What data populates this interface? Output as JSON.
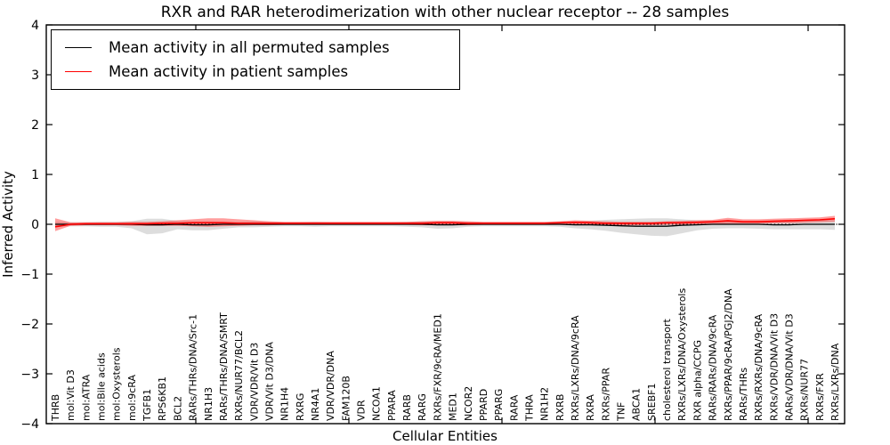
{
  "chart_data": {
    "type": "line",
    "title": "RXR and RAR heterodimerization with other nuclear receptor -- 28 samples",
    "xlabel": "Cellular Entities",
    "ylabel": "Inferred Activity",
    "ylim": [
      -4,
      4
    ],
    "yticks": [
      4,
      3,
      2,
      1,
      0,
      -1,
      -2,
      -3,
      -4
    ],
    "grid": false,
    "legend_position": "upper left",
    "zero_line": {
      "value": 0,
      "style": "dotted",
      "color": "#000000"
    },
    "categories": [
      "THRB",
      "mol:Vit D3",
      "mol:ATRA",
      "mol:Bile acids",
      "mol:Oxysterols",
      "mol:9cRA",
      "TGFB1",
      "RPS6KB1",
      "BCL2",
      "RARs/THRs/DNA/Src-1",
      "NR1H3",
      "RARs/THRs/DNA/SMRT",
      "RXRs/NUR77/BCL2",
      "VDR/VDR/Vit D3",
      "VDR/Vit D3/DNA",
      "NR1H4",
      "RXRG",
      "NR4A1",
      "VDR/VDR/DNA",
      "FAM120B",
      "VDR",
      "NCOA1",
      "PPARA",
      "RARB",
      "RARG",
      "RXRs/FXR/9cRA/MED1",
      "MED1",
      "NCOR2",
      "PPARD",
      "PPARG",
      "RARA",
      "THRA",
      "NR1H2",
      "RXRB",
      "RXRs/LXRs/DNA/9cRA",
      "RXRA",
      "RXRs/PPAR",
      "TNF",
      "ABCA1",
      "SREBF1",
      "cholesterol transport",
      "RXRs/LXRs/DNA/Oxysterols",
      "RXR alpha/CCPG",
      "RARs/RARs/DNA/9cRA",
      "RXRs/PPAR/9cRA/PGJ2/DNA",
      "RARs/THRs",
      "RXRs/RXRs/DNA/9cRA",
      "RXRs/VDR/DNA/Vit D3",
      "RARs/VDR/DNA/Vit D3",
      "RXRs/NUR77",
      "RXRs/FXR",
      "RXRs/LXRs/DNA"
    ],
    "series": [
      {
        "name": "Mean activity in all permuted samples",
        "color": "#000000",
        "style": "solid",
        "values": [
          0,
          0,
          0,
          0,
          0,
          0,
          -0.01,
          -0.01,
          0,
          -0.01,
          -0.01,
          0,
          0,
          0,
          0,
          0,
          0,
          0,
          0,
          0,
          0,
          0,
          0,
          0,
          0,
          -0.01,
          -0.01,
          0,
          0,
          0,
          0,
          0,
          0,
          0,
          -0.01,
          -0.01,
          -0.02,
          -0.03,
          -0.04,
          -0.04,
          -0.04,
          -0.02,
          -0.01,
          0,
          0,
          0,
          0,
          -0.01,
          -0.01,
          0,
          0,
          0
        ]
      },
      {
        "name": "Mean activity in patient samples",
        "color": "#ff0000",
        "style": "solid",
        "values": [
          -0.05,
          0,
          0.01,
          0.01,
          0.01,
          0.01,
          0.01,
          0.02,
          0.02,
          0.03,
          0.03,
          0.03,
          0.02,
          0.02,
          0.02,
          0.02,
          0.02,
          0.02,
          0.02,
          0.02,
          0.02,
          0.02,
          0.02,
          0.02,
          0.02,
          0.03,
          0.03,
          0.02,
          0.02,
          0.02,
          0.02,
          0.02,
          0.02,
          0.03,
          0.04,
          0.03,
          0.02,
          0.02,
          0.02,
          0.02,
          0.03,
          0.03,
          0.04,
          0.05,
          0.07,
          0.05,
          0.05,
          0.06,
          0.07,
          0.08,
          0.09,
          0.11
        ]
      }
    ],
    "bands": [
      {
        "series": "Mean activity in all permuted samples",
        "color": "#909090",
        "opacity": 0.3,
        "hi": [
          0.05,
          0.04,
          0.04,
          0.05,
          0.05,
          0.06,
          0.11,
          0.11,
          0.07,
          0.06,
          0.06,
          0.05,
          0.05,
          0.06,
          0.05,
          0.04,
          0.04,
          0.05,
          0.04,
          0.04,
          0.04,
          0.04,
          0.04,
          0.05,
          0.06,
          0.06,
          0.06,
          0.05,
          0.04,
          0.04,
          0.04,
          0.04,
          0.04,
          0.05,
          0.06,
          0.07,
          0.09,
          0.1,
          0.11,
          0.12,
          0.12,
          0.1,
          0.08,
          0.07,
          0.06,
          0.06,
          0.07,
          0.07,
          0.07,
          0.07,
          0.08,
          0.08
        ],
        "lo": [
          -0.05,
          -0.04,
          -0.04,
          -0.05,
          -0.05,
          -0.08,
          -0.2,
          -0.18,
          -0.1,
          -0.12,
          -0.12,
          -0.09,
          -0.06,
          -0.06,
          -0.05,
          -0.04,
          -0.04,
          -0.05,
          -0.04,
          -0.04,
          -0.04,
          -0.04,
          -0.04,
          -0.05,
          -0.06,
          -0.09,
          -0.08,
          -0.05,
          -0.04,
          -0.04,
          -0.04,
          -0.04,
          -0.04,
          -0.05,
          -0.08,
          -0.1,
          -0.13,
          -0.17,
          -0.2,
          -0.23,
          -0.24,
          -0.18,
          -0.12,
          -0.09,
          -0.08,
          -0.08,
          -0.09,
          -0.1,
          -0.1,
          -0.1,
          -0.1,
          -0.11
        ]
      },
      {
        "series": "Mean activity in patient samples",
        "color": "#ff0000",
        "opacity": 0.38,
        "hi": [
          0.12,
          0.04,
          0.04,
          0.04,
          0.04,
          0.05,
          0.05,
          0.06,
          0.08,
          0.1,
          0.12,
          0.12,
          0.1,
          0.08,
          0.06,
          0.05,
          0.05,
          0.05,
          0.05,
          0.05,
          0.05,
          0.05,
          0.05,
          0.05,
          0.06,
          0.07,
          0.07,
          0.06,
          0.05,
          0.05,
          0.05,
          0.05,
          0.05,
          0.06,
          0.08,
          0.07,
          0.06,
          0.05,
          0.05,
          0.05,
          0.06,
          0.07,
          0.08,
          0.09,
          0.13,
          0.1,
          0.1,
          0.11,
          0.12,
          0.13,
          0.14,
          0.17
        ],
        "lo": [
          -0.14,
          -0.03,
          -0.02,
          -0.02,
          -0.02,
          -0.03,
          -0.03,
          -0.03,
          -0.03,
          -0.04,
          -0.05,
          -0.04,
          -0.03,
          -0.02,
          -0.02,
          -0.01,
          -0.01,
          -0.01,
          -0.01,
          -0.01,
          -0.01,
          -0.01,
          -0.01,
          -0.01,
          -0.02,
          -0.02,
          -0.02,
          -0.02,
          -0.01,
          -0.01,
          -0.01,
          -0.01,
          -0.01,
          -0.01,
          -0.02,
          -0.02,
          -0.02,
          -0.02,
          -0.02,
          -0.02,
          -0.01,
          -0.01,
          0,
          0,
          0.01,
          0.01,
          0.01,
          0.02,
          0.02,
          0.03,
          0.04,
          0.05
        ]
      }
    ]
  }
}
